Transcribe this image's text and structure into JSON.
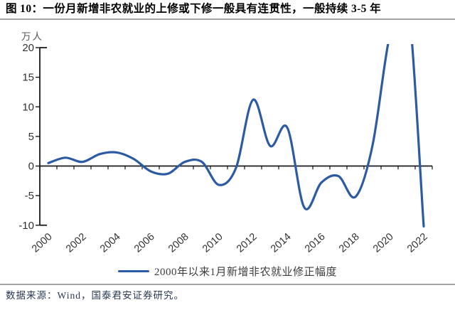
{
  "figure": {
    "title": "图 10：一份月新增非农就业的上修或下修一般具有连贯性，一般持续 3-5 年",
    "unit_label": "万人",
    "source": "数据来源：Wind，国泰君安证券研究。"
  },
  "legend": {
    "label": "2000年以来1月新增非农就业修正幅度"
  },
  "colors": {
    "line": "#2d5ba3",
    "axis": "#1a1a1a",
    "tick_text": "#333333",
    "unit_text": "#595959",
    "rule": "#a3a3a3",
    "source_text": "#2a3a55"
  },
  "chart_data": {
    "type": "line",
    "title": "一份月新增非农就业的上修或下修一般具有连贯性，一般持续 3-5 年",
    "ylabel": "万人",
    "xlabel": "",
    "x": [
      2000,
      2001,
      2002,
      2003,
      2004,
      2005,
      2006,
      2007,
      2008,
      2009,
      2010,
      2011,
      2012,
      2013,
      2014,
      2015,
      2016,
      2017,
      2018,
      2019,
      2020,
      2021,
      2022
    ],
    "series": [
      {
        "name": "2000年以来1月新增非农就业修正幅度",
        "values": [
          0.5,
          1.4,
          0.7,
          2.0,
          2.3,
          1.2,
          -0.9,
          -1.3,
          0.7,
          0.7,
          -3.2,
          -0.3,
          11.2,
          3.4,
          6.5,
          -7.0,
          -2.8,
          -1.7,
          -5.2,
          3.5,
          22,
          30,
          -10.2
        ]
      }
    ],
    "clipped_above_ymax": [
      2020,
      2021
    ],
    "x_tick_labels": [
      "2000",
      "2002",
      "2004",
      "2006",
      "2008",
      "2010",
      "2012",
      "2014",
      "2016",
      "2018",
      "2020",
      "2022"
    ],
    "y_ticks": [
      20,
      15,
      10,
      5,
      0,
      -5,
      -10
    ],
    "ylim": [
      -10,
      20
    ],
    "grid": false,
    "legend_position": "bottom"
  }
}
